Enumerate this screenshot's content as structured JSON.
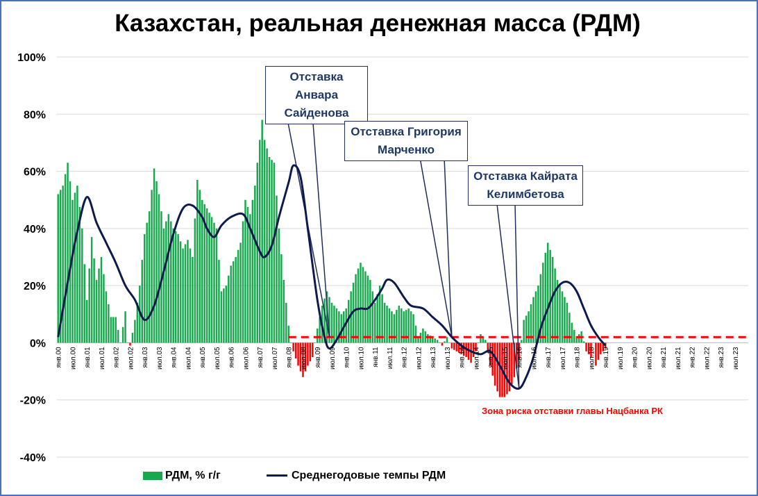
{
  "chart_data": {
    "type": "bar",
    "title": "Казахстан, реальная денежная масса (РДМ)",
    "ylim": [
      -40,
      100
    ],
    "yticks": [
      "100%",
      "80%",
      "60%",
      "40%",
      "20%",
      "0%",
      "-20%",
      "-40%"
    ],
    "ytick_values": [
      100,
      80,
      60,
      40,
      20,
      0,
      -20,
      -40
    ],
    "x_start": "2000-01",
    "x_end": "2023-12",
    "x_tick_labels": [
      "янв.00",
      "июл.00",
      "янв.01",
      "июл.01",
      "янв.02",
      "июл.02",
      "янв.03",
      "июл.03",
      "янв.04",
      "июл.04",
      "янв.05",
      "июл.05",
      "янв.06",
      "июл.06",
      "янв.07",
      "июл.07",
      "янв.08",
      "июл.08",
      "янв.09",
      "июл.09",
      "янв.10",
      "июл.10",
      "янв.11",
      "июл.11",
      "янв.12",
      "июл.12",
      "янв.13",
      "июл.13",
      "янв.14",
      "июл.14",
      "янв.15",
      "июл.15",
      "янв.16",
      "июл.16",
      "янв.17",
      "июл.17",
      "янв.18",
      "июл.18",
      "янв.19",
      "июл.19",
      "янв.20",
      "июл.20",
      "янв.21",
      "июл.21",
      "янв.22",
      "июл.22",
      "янв.23",
      "июл.23"
    ],
    "threshold": 2,
    "colors": {
      "positive": "#18a84e",
      "negative": "#ff0000",
      "line": "#0d1a4d",
      "threshold": "#ff0000"
    },
    "series": [
      {
        "name": "РДМ, % г/г",
        "kind": "bar",
        "anchors": [
          [
            "2000-01",
            52
          ],
          [
            "2000-03",
            55
          ],
          [
            "2000-05",
            63
          ],
          [
            "2000-07",
            50
          ],
          [
            "2000-09",
            55
          ],
          [
            "2000-11",
            40
          ],
          [
            "2001-01",
            15
          ],
          [
            "2001-03",
            37
          ],
          [
            "2001-05",
            22
          ],
          [
            "2001-07",
            30
          ],
          [
            "2001-09",
            18
          ],
          [
            "2001-11",
            9
          ],
          [
            "2002-01",
            9
          ],
          [
            "2002-03",
            0
          ],
          [
            "2002-05",
            11
          ],
          [
            "2002-06",
            0
          ],
          [
            "2002-07",
            -1
          ],
          [
            "2002-09",
            8
          ],
          [
            "2002-11",
            20
          ],
          [
            "2003-01",
            38
          ],
          [
            "2003-03",
            46
          ],
          [
            "2003-05",
            61
          ],
          [
            "2003-07",
            52
          ],
          [
            "2003-09",
            40
          ],
          [
            "2003-11",
            45
          ],
          [
            "2004-01",
            40
          ],
          [
            "2004-03",
            38
          ],
          [
            "2004-05",
            33
          ],
          [
            "2004-07",
            36
          ],
          [
            "2004-09",
            30
          ],
          [
            "2004-11",
            57
          ],
          [
            "2005-01",
            50
          ],
          [
            "2005-03",
            47
          ],
          [
            "2005-05",
            44
          ],
          [
            "2005-07",
            40
          ],
          [
            "2005-09",
            18
          ],
          [
            "2005-11",
            20
          ],
          [
            "2006-01",
            27
          ],
          [
            "2006-03",
            30
          ],
          [
            "2006-05",
            35
          ],
          [
            "2006-07",
            50
          ],
          [
            "2006-09",
            45
          ],
          [
            "2006-11",
            55
          ],
          [
            "2007-01",
            71
          ],
          [
            "2007-02",
            78
          ],
          [
            "2007-03",
            71
          ],
          [
            "2007-05",
            65
          ],
          [
            "2007-07",
            63
          ],
          [
            "2007-09",
            40
          ],
          [
            "2007-11",
            22
          ],
          [
            "2008-01",
            6
          ],
          [
            "2008-02",
            0
          ],
          [
            "2008-03",
            -3
          ],
          [
            "2008-05",
            -8
          ],
          [
            "2008-07",
            -12
          ],
          [
            "2008-09",
            -8
          ],
          [
            "2008-11",
            -5
          ],
          [
            "2009-01",
            5
          ],
          [
            "2009-03",
            13
          ],
          [
            "2009-05",
            18
          ],
          [
            "2009-07",
            14
          ],
          [
            "2009-09",
            12
          ],
          [
            "2009-11",
            10
          ],
          [
            "2010-01",
            12
          ],
          [
            "2010-03",
            18
          ],
          [
            "2010-05",
            24
          ],
          [
            "2010-07",
            28
          ],
          [
            "2010-09",
            25
          ],
          [
            "2010-11",
            22
          ],
          [
            "2011-01",
            14
          ],
          [
            "2011-03",
            20
          ],
          [
            "2011-05",
            14
          ],
          [
            "2011-07",
            12
          ],
          [
            "2011-09",
            10
          ],
          [
            "2011-11",
            13
          ],
          [
            "2012-01",
            11
          ],
          [
            "2012-03",
            12
          ],
          [
            "2012-05",
            10
          ],
          [
            "2012-07",
            2
          ],
          [
            "2012-09",
            5
          ],
          [
            "2012-11",
            3
          ],
          [
            "2013-01",
            2
          ],
          [
            "2013-03",
            1
          ],
          [
            "2013-05",
            -1
          ],
          [
            "2013-07",
            2
          ],
          [
            "2013-09",
            -2
          ],
          [
            "2013-11",
            -3
          ],
          [
            "2014-01",
            -4
          ],
          [
            "2014-03",
            -5
          ],
          [
            "2014-05",
            -7
          ],
          [
            "2014-07",
            -3
          ],
          [
            "2014-09",
            3
          ],
          [
            "2014-11",
            1
          ],
          [
            "2015-01",
            -8
          ],
          [
            "2015-03",
            -15
          ],
          [
            "2015-05",
            -19
          ],
          [
            "2015-07",
            -19
          ],
          [
            "2015-09",
            -17
          ],
          [
            "2015-11",
            -12
          ],
          [
            "2016-01",
            -6
          ],
          [
            "2016-03",
            8
          ],
          [
            "2016-05",
            11
          ],
          [
            "2016-07",
            16
          ],
          [
            "2016-09",
            20
          ],
          [
            "2016-11",
            28
          ],
          [
            "2017-01",
            35
          ],
          [
            "2017-03",
            30
          ],
          [
            "2017-05",
            22
          ],
          [
            "2017-07",
            18
          ],
          [
            "2017-09",
            14
          ],
          [
            "2017-11",
            7
          ],
          [
            "2018-01",
            2
          ],
          [
            "2018-03",
            4
          ],
          [
            "2018-05",
            -3
          ],
          [
            "2018-07",
            -5
          ],
          [
            "2018-08",
            0
          ],
          [
            "2018-09",
            -8
          ],
          [
            "2018-11",
            -4
          ],
          [
            "2019-01",
            -2
          ]
        ]
      },
      {
        "name": "Среднегодовые темпы РДМ",
        "kind": "line",
        "points": [
          [
            "2000-01",
            2
          ],
          [
            "2000-06",
            26
          ],
          [
            "2000-09",
            39
          ],
          [
            "2001-01",
            51
          ],
          [
            "2001-05",
            42
          ],
          [
            "2001-09",
            35
          ],
          [
            "2002-01",
            28
          ],
          [
            "2002-05",
            20
          ],
          [
            "2002-09",
            15
          ],
          [
            "2003-01",
            8
          ],
          [
            "2003-05",
            13
          ],
          [
            "2003-09",
            25
          ],
          [
            "2004-01",
            38
          ],
          [
            "2004-05",
            47
          ],
          [
            "2004-09",
            48
          ],
          [
            "2005-01",
            44
          ],
          [
            "2005-03",
            40
          ],
          [
            "2005-06",
            37
          ],
          [
            "2005-09",
            41
          ],
          [
            "2006-01",
            44
          ],
          [
            "2006-06",
            45
          ],
          [
            "2006-09",
            40
          ],
          [
            "2007-01",
            32
          ],
          [
            "2007-03",
            30
          ],
          [
            "2007-06",
            34
          ],
          [
            "2007-09",
            44
          ],
          [
            "2008-01",
            56
          ],
          [
            "2008-03",
            62
          ],
          [
            "2008-06",
            58
          ],
          [
            "2008-09",
            40
          ],
          [
            "2009-01",
            15
          ],
          [
            "2009-04",
            2
          ],
          [
            "2009-06",
            -2
          ],
          [
            "2009-09",
            1
          ],
          [
            "2010-01",
            7
          ],
          [
            "2010-04",
            11
          ],
          [
            "2010-07",
            12
          ],
          [
            "2010-10",
            12
          ],
          [
            "2011-01",
            15
          ],
          [
            "2011-04",
            19
          ],
          [
            "2011-06",
            22
          ],
          [
            "2011-09",
            21
          ],
          [
            "2012-01",
            16
          ],
          [
            "2012-04",
            13
          ],
          [
            "2012-09",
            12
          ],
          [
            "2013-01",
            9
          ],
          [
            "2013-05",
            6
          ],
          [
            "2013-09",
            2
          ],
          [
            "2014-01",
            -1
          ],
          [
            "2014-05",
            -3
          ],
          [
            "2014-09",
            -4
          ],
          [
            "2015-01",
            -3
          ],
          [
            "2015-05",
            -8
          ],
          [
            "2015-09",
            -14
          ],
          [
            "2016-01",
            -16
          ],
          [
            "2016-04",
            -12
          ],
          [
            "2016-07",
            -5
          ],
          [
            "2016-10",
            5
          ],
          [
            "2017-01",
            12
          ],
          [
            "2017-04",
            18
          ],
          [
            "2017-07",
            21
          ],
          [
            "2017-10",
            21
          ],
          [
            "2018-01",
            18
          ],
          [
            "2018-04",
            12
          ],
          [
            "2018-07",
            6
          ],
          [
            "2018-10",
            2
          ],
          [
            "2019-01",
            -1
          ]
        ]
      }
    ],
    "annotations": [
      {
        "text": "Отставка Анвара Сайденова",
        "target": [
          "2009-06",
          2
        ]
      },
      {
        "text": "Отставка Григория Марченко",
        "target": [
          "2013-09",
          2
        ]
      },
      {
        "text": "Отставка Кайрата Келимбетова",
        "target": [
          "2016-01",
          -16
        ]
      }
    ],
    "zone_label": "Зона риска отставки главы Нацбанка РК",
    "legend": {
      "bar_label": "РДМ, % г/г",
      "line_label": "Среднегодовые темпы РДМ",
      "position": "bottom"
    }
  }
}
